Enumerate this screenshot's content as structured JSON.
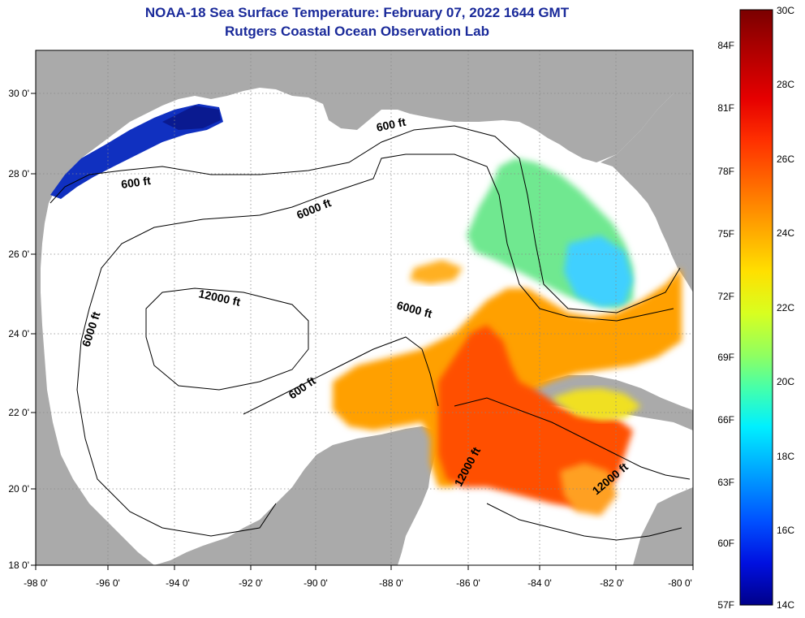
{
  "title": "NOAA-18 Sea Surface Temperature:  February 07, 2022 1644 GMT",
  "subtitle": "Rutgers Coastal Ocean Observation Lab",
  "lat_labels": [
    "30 0'",
    "28 0'",
    "26 0'",
    "24 0'",
    "22 0'",
    "20 0'",
    "18 0'"
  ],
  "lon_labels": [
    "-98 0'",
    "-96 0'",
    "-94 0'",
    "-92 0'",
    "-90 0'",
    "-88 0'",
    "-86 0'",
    "-84 0'",
    "-82 0'",
    "-80 0'"
  ],
  "contour_labels": [
    "600 ft",
    "600 ft",
    "600 ft",
    "6000 ft",
    "6000 ft",
    "6000 ft",
    "12000 ft",
    "12000 ft",
    "12000 ft"
  ],
  "colorbar": {
    "celsius_labels": [
      "30C",
      "28C",
      "26C",
      "24C",
      "22C",
      "20C",
      "18C",
      "16C",
      "14C"
    ],
    "fahrenheit_labels": [
      "84F",
      "81F",
      "78F",
      "75F",
      "72F",
      "69F",
      "66F",
      "63F",
      "60F",
      "57F"
    ],
    "colors": [
      "#7a0000",
      "#b00000",
      "#e60000",
      "#ff3000",
      "#ff7000",
      "#ffa800",
      "#ffe000",
      "#d8ff20",
      "#90ff60",
      "#40ffb0",
      "#00f0ff",
      "#00a0ff",
      "#0050ff",
      "#0010e0",
      "#00008a"
    ]
  },
  "colors": {
    "land": "#aaaaaa",
    "ocean": "#ffffff",
    "title": "#1a2a9a"
  }
}
